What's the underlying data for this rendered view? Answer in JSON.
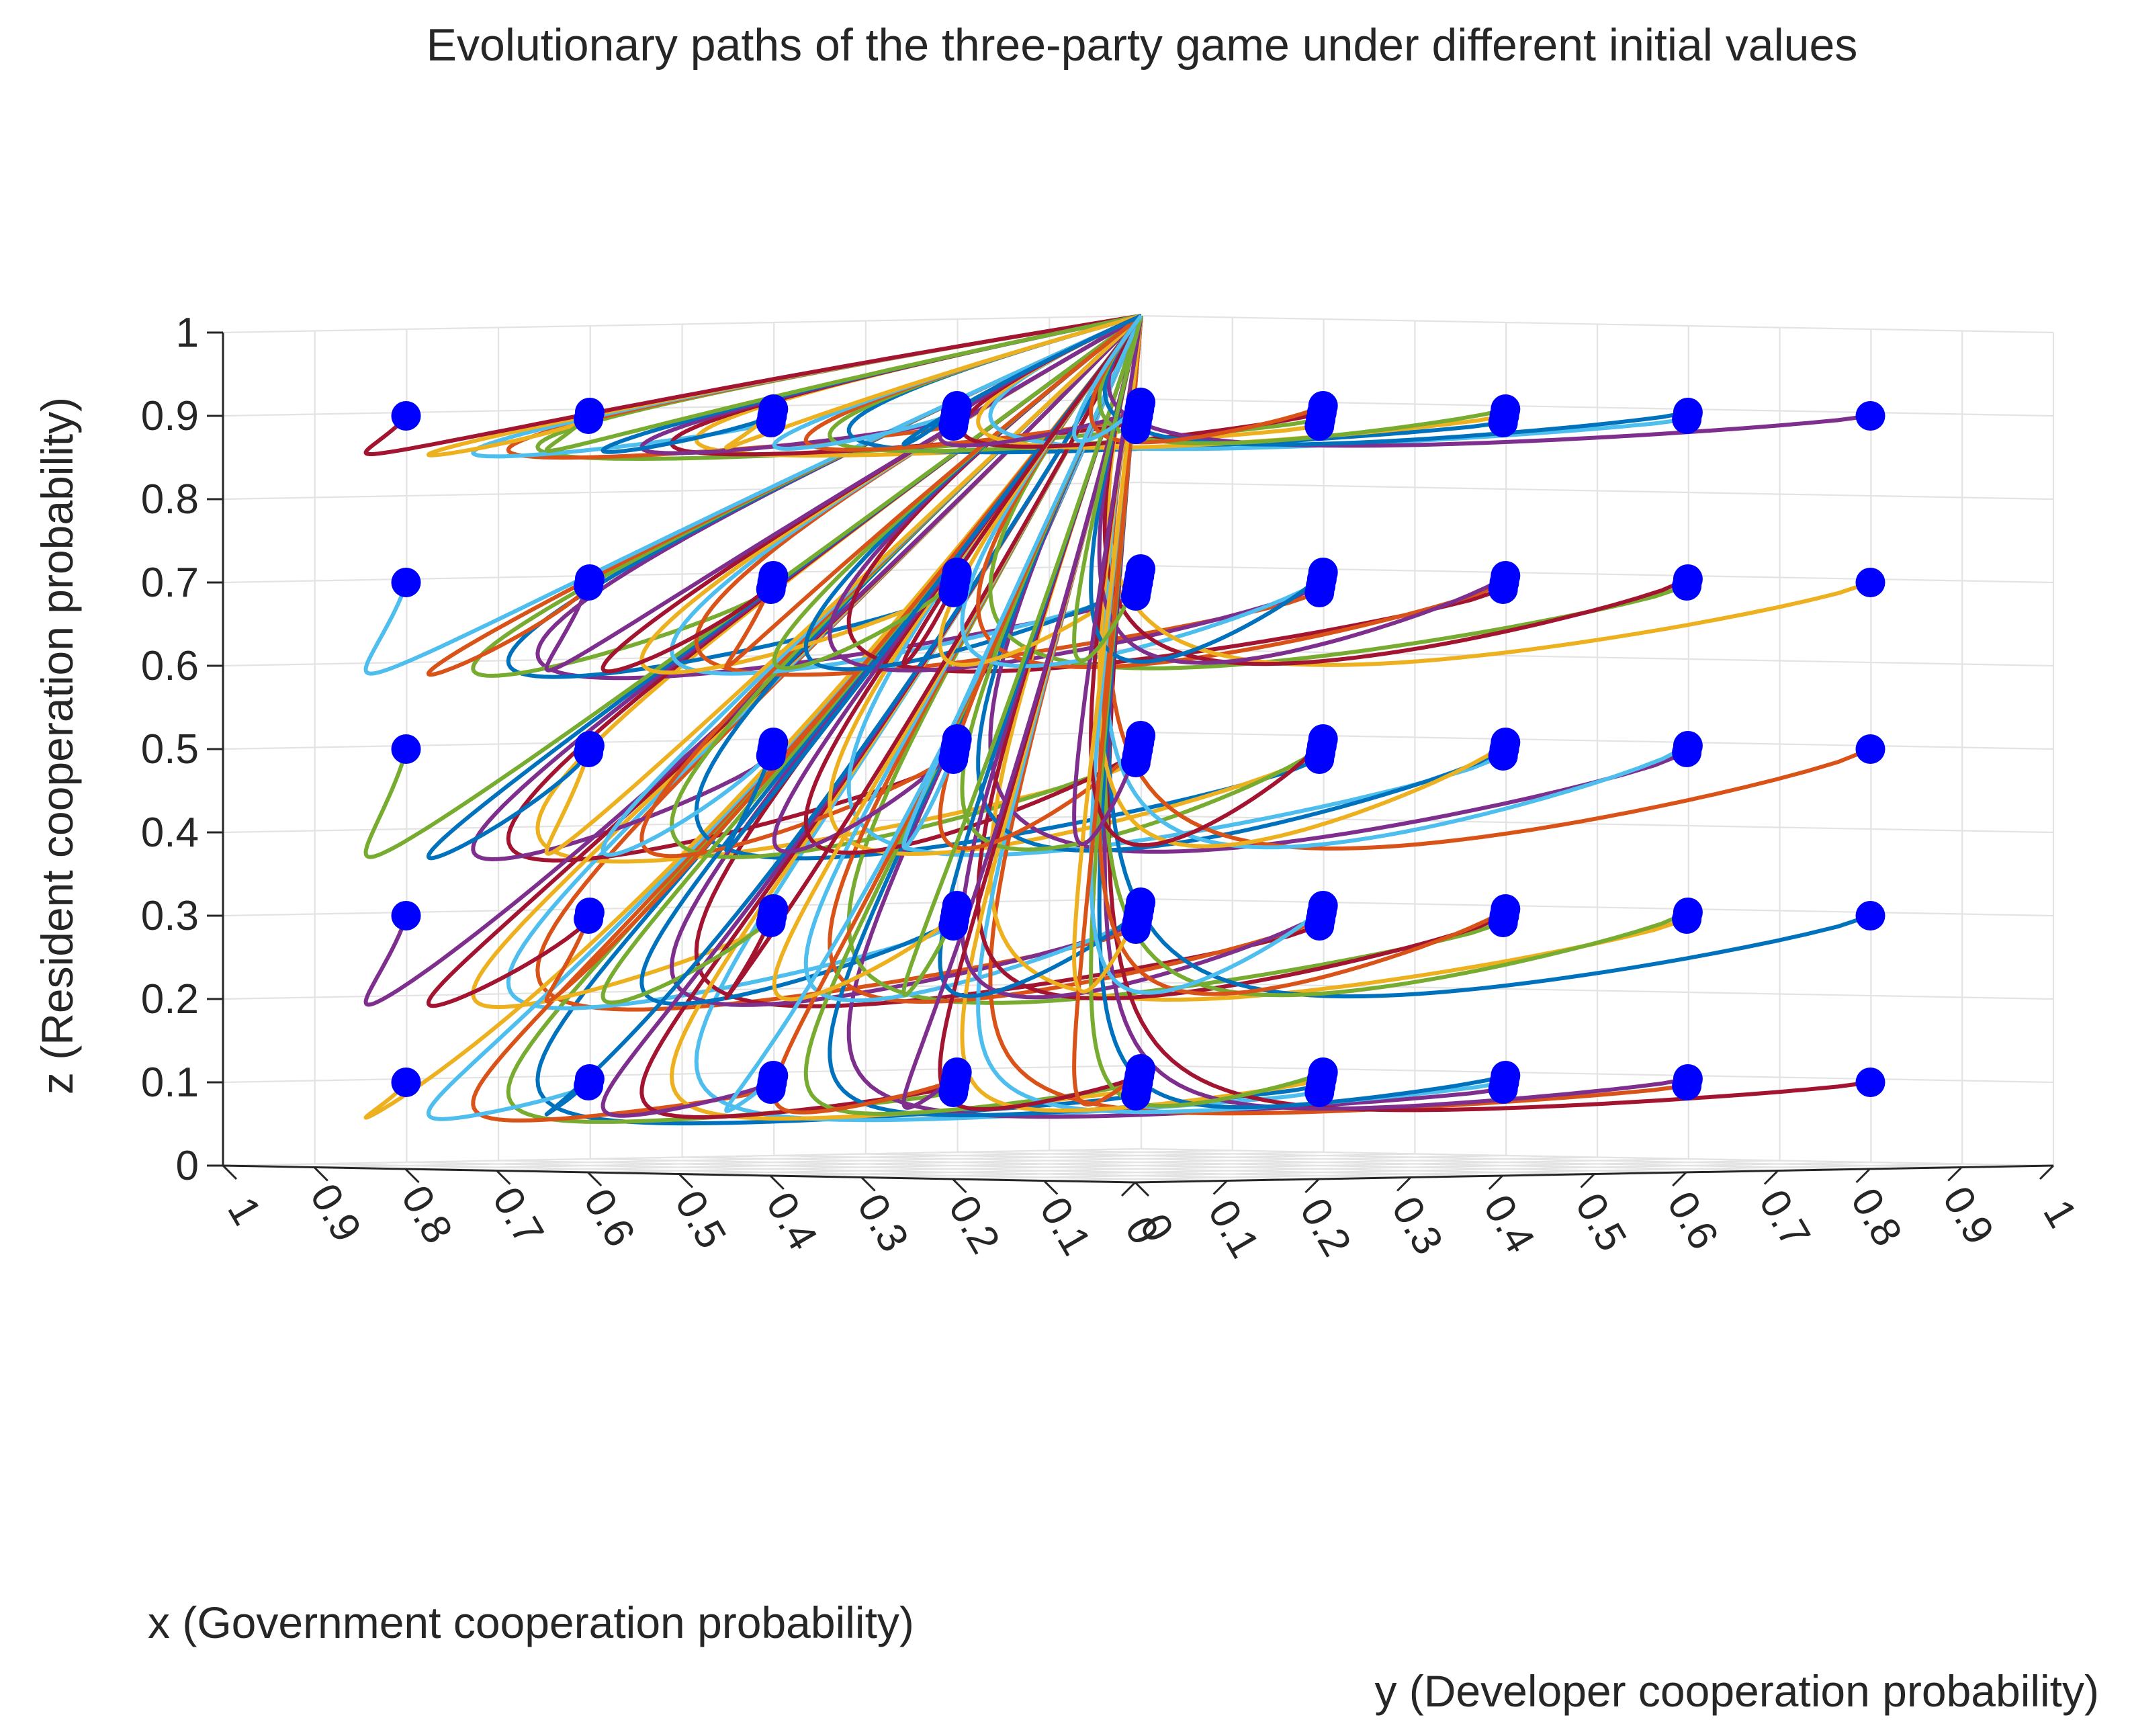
{
  "chart_data": {
    "type": "line3d",
    "title": "Evolutionary paths of the three-party game under different initial values",
    "xlabel": "x (Government cooperation probability)",
    "ylabel": "y (Developer cooperation probability)",
    "zlabel": "z (Resident cooperation probability)",
    "xlim": [
      0,
      1
    ],
    "ylim": [
      0,
      1
    ],
    "zlim": [
      0,
      1
    ],
    "x_ticks": [
      "0",
      "0.1",
      "0.2",
      "0.3",
      "0.4",
      "0.5",
      "0.6",
      "0.7",
      "0.8",
      "0.9",
      "1"
    ],
    "y_ticks": [
      "0",
      "0.1",
      "0.2",
      "0.3",
      "0.4",
      "0.5",
      "0.6",
      "0.7",
      "0.8",
      "0.9",
      "1"
    ],
    "z_ticks": [
      "0",
      "0.1",
      "0.2",
      "0.3",
      "0.4",
      "0.5",
      "0.6",
      "0.7",
      "0.8",
      "0.9",
      "1"
    ],
    "grid": true,
    "legend": "none",
    "equilibrium_point": {
      "x": 1,
      "y": 1,
      "z": 1
    },
    "initial_point_color": "#0000ff",
    "initial_values_x": [
      0.1,
      0.3,
      0.5,
      0.7,
      0.9
    ],
    "initial_values_y": [
      0.1,
      0.3,
      0.5,
      0.7,
      0.9
    ],
    "initial_values_z": [
      0.1,
      0.3,
      0.5,
      0.7,
      0.9
    ],
    "path_colors": [
      "#0072BD",
      "#D95319",
      "#EDB120",
      "#7E2F8E",
      "#77AC30",
      "#4DBEEE",
      "#A2142F"
    ],
    "path_count": 125
  }
}
